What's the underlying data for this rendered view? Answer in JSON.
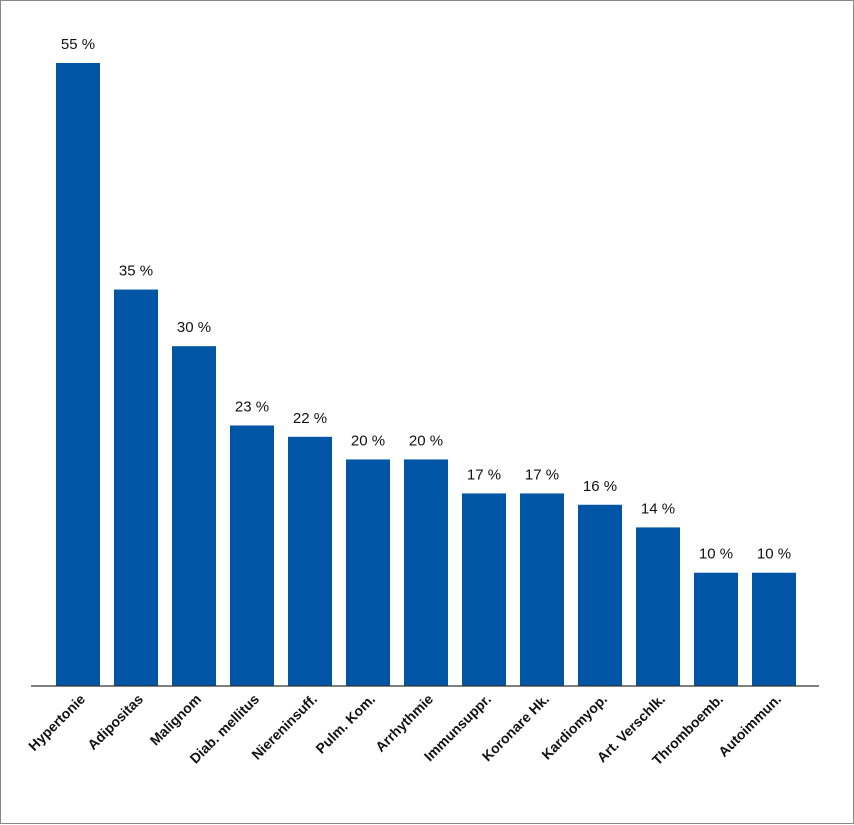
{
  "chart_data": {
    "type": "bar",
    "categories": [
      "Hypertonie",
      "Adipositas",
      "Malignom",
      "Diab. mellitus",
      "Niereninsuff.",
      "Pulm. Kom.",
      "Arrhythmie",
      "Immunsuppr.",
      "Koronare Hk.",
      "Kardiomyop.",
      "Art. Verschlk.",
      "Thromboemb.",
      "Autoimmun."
    ],
    "values": [
      55,
      35,
      30,
      23,
      22,
      20,
      20,
      17,
      17,
      16,
      14,
      10,
      10
    ],
    "data_labels": [
      "55 %",
      "35 %",
      "30 %",
      "23 %",
      "22 %",
      "20 %",
      "20 %",
      "17 %",
      "17 %",
      "16 %",
      "14 %",
      "10 %",
      "10 %"
    ],
    "ylim": [
      0,
      55
    ],
    "grid": false,
    "bar_color": "#0055a5",
    "axis_color": "#333333"
  }
}
